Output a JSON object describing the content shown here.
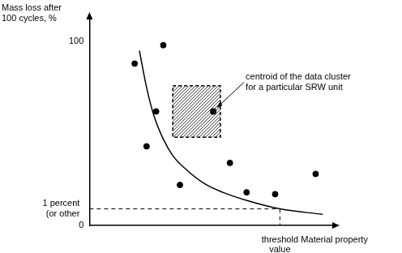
{
  "chart_data": {
    "type": "scatter",
    "y_label": [
      "Mass loss after",
      "100 cycles, %"
    ],
    "x_label": "Material property",
    "xlim": [
      0,
      102
    ],
    "ylim": [
      0,
      112
    ],
    "yticks": [
      0,
      100
    ],
    "tick_labels": "y",
    "grid": false,
    "series": [
      {
        "type": "scatter",
        "marker": "circle",
        "color": "#000000",
        "x": [
          19,
          31,
          28,
          24,
          38,
          59,
          66,
          78,
          95
        ],
        "values": [
          88,
          98,
          62,
          43,
          22,
          34,
          18,
          17,
          28
        ]
      },
      {
        "type": "line",
        "line_style": "solid",
        "color": "#000000",
        "x": [
          21,
          24,
          27,
          31,
          35,
          41,
          48,
          56,
          65,
          80,
          98
        ],
        "values": [
          95,
          75,
          60,
          47,
          38,
          30,
          23,
          18,
          14,
          9,
          6
        ]
      }
    ],
    "cluster_box": {
      "x": [
        35,
        55
      ],
      "y": [
        48,
        76
      ]
    },
    "centroid": {
      "x": 52,
      "y": 62,
      "text": [
        "centroid of the data cluster",
        "for a particular SRW unit"
      ]
    },
    "criterion": {
      "y": 9,
      "text": [
        "1 percent",
        "(or other"
      ]
    },
    "threshold": {
      "x": 80,
      "text": [
        "threshold",
        "value"
      ]
    }
  }
}
